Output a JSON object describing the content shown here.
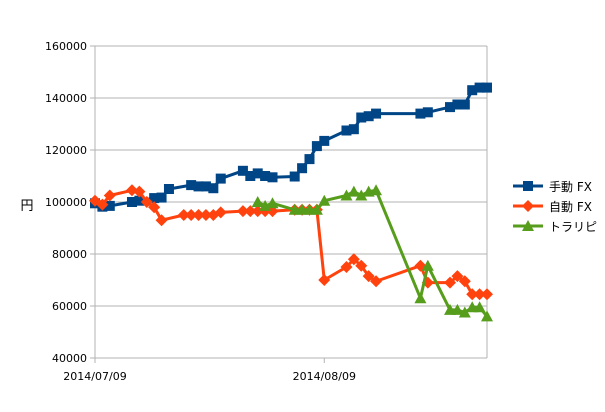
{
  "chart_data": {
    "type": "line",
    "ylabel": "円",
    "ylim": [
      40000,
      160000
    ],
    "y_ticks": [
      "40000",
      "60000",
      "80000",
      "100000",
      "120000",
      "140000",
      "160000"
    ],
    "x_range": [
      "2014/07/09",
      "2014/08/31"
    ],
    "x_ticks": [
      {
        "date": "2014/07/09",
        "label": "2014/07/09"
      },
      {
        "date": "2014/08/09",
        "label": "2014/08/09"
      }
    ],
    "grid": "horizontal",
    "legend_position": "right",
    "series": [
      {
        "name": "手動 FX",
        "color": "#004586",
        "marker": "square",
        "points": [
          [
            "2014/07/09",
            99500
          ],
          [
            "2014/07/10",
            98200
          ],
          [
            "2014/07/11",
            98500
          ],
          [
            "2014/07/14",
            100000
          ],
          [
            "2014/07/15",
            100500
          ],
          [
            "2014/07/17",
            101500
          ],
          [
            "2014/07/18",
            101700
          ],
          [
            "2014/07/19",
            105000
          ],
          [
            "2014/07/22",
            106500
          ],
          [
            "2014/07/23",
            106000
          ],
          [
            "2014/07/24",
            106000
          ],
          [
            "2014/07/25",
            105300
          ],
          [
            "2014/07/26",
            109000
          ],
          [
            "2014/07/29",
            112000
          ],
          [
            "2014/07/30",
            110000
          ],
          [
            "2014/07/31",
            111000
          ],
          [
            "2014/08/01",
            110000
          ],
          [
            "2014/08/02",
            109500
          ],
          [
            "2014/08/05",
            109800
          ],
          [
            "2014/08/06",
            113000
          ],
          [
            "2014/08/07",
            116500
          ],
          [
            "2014/08/08",
            121500
          ],
          [
            "2014/08/09",
            123500
          ],
          [
            "2014/08/12",
            127500
          ],
          [
            "2014/08/13",
            128000
          ],
          [
            "2014/08/14",
            132500
          ],
          [
            "2014/08/15",
            133000
          ],
          [
            "2014/08/16",
            134000
          ],
          [
            "2014/08/22",
            134000
          ],
          [
            "2014/08/23",
            134500
          ],
          [
            "2014/08/26",
            136500
          ],
          [
            "2014/08/27",
            137500
          ],
          [
            "2014/08/28",
            137500
          ],
          [
            "2014/08/29",
            143000
          ],
          [
            "2014/08/30",
            144000
          ],
          [
            "2014/08/31",
            144000
          ]
        ]
      },
      {
        "name": "自動 FX",
        "color": "#ff420e",
        "marker": "diamond",
        "points": [
          [
            "2014/07/09",
            100500
          ],
          [
            "2014/07/10",
            99000
          ],
          [
            "2014/07/11",
            102500
          ],
          [
            "2014/07/14",
            104500
          ],
          [
            "2014/07/15",
            104000
          ],
          [
            "2014/07/16",
            100000
          ],
          [
            "2014/07/17",
            98000
          ],
          [
            "2014/07/18",
            93000
          ],
          [
            "2014/07/21",
            95000
          ],
          [
            "2014/07/22",
            95000
          ],
          [
            "2014/07/23",
            95000
          ],
          [
            "2014/07/24",
            95000
          ],
          [
            "2014/07/25",
            95000
          ],
          [
            "2014/07/26",
            96000
          ],
          [
            "2014/07/29",
            96500
          ],
          [
            "2014/07/30",
            96500
          ],
          [
            "2014/07/31",
            96500
          ],
          [
            "2014/08/01",
            96500
          ],
          [
            "2014/08/02",
            96500
          ],
          [
            "2014/08/05",
            97000
          ],
          [
            "2014/08/06",
            97000
          ],
          [
            "2014/08/07",
            97000
          ],
          [
            "2014/08/08",
            97000
          ],
          [
            "2014/08/09",
            70000
          ],
          [
            "2014/08/12",
            75000
          ],
          [
            "2014/08/13",
            78000
          ],
          [
            "2014/08/14",
            75500
          ],
          [
            "2014/08/15",
            71500
          ],
          [
            "2014/08/16",
            69500
          ],
          [
            "2014/08/22",
            75500
          ],
          [
            "2014/08/23",
            69000
          ],
          [
            "2014/08/26",
            69000
          ],
          [
            "2014/08/27",
            71500
          ],
          [
            "2014/08/28",
            69500
          ],
          [
            "2014/08/29",
            64500
          ],
          [
            "2014/08/30",
            64500
          ],
          [
            "2014/08/31",
            64500
          ]
        ]
      },
      {
        "name": "トラリピ",
        "color": "#579d1c",
        "marker": "triangle",
        "points": [
          [
            "2014/07/31",
            100000
          ],
          [
            "2014/08/01",
            98500
          ],
          [
            "2014/08/02",
            99500
          ],
          [
            "2014/08/05",
            97000
          ],
          [
            "2014/08/06",
            97000
          ],
          [
            "2014/08/07",
            97000
          ],
          [
            "2014/08/08",
            97000
          ],
          [
            "2014/08/09",
            100500
          ],
          [
            "2014/08/12",
            102500
          ],
          [
            "2014/08/13",
            104000
          ],
          [
            "2014/08/14",
            102500
          ],
          [
            "2014/08/15",
            104000
          ],
          [
            "2014/08/16",
            104500
          ],
          [
            "2014/08/22",
            63000
          ],
          [
            "2014/08/23",
            75500
          ],
          [
            "2014/08/26",
            58500
          ],
          [
            "2014/08/27",
            58500
          ],
          [
            "2014/08/28",
            57500
          ],
          [
            "2014/08/29",
            59500
          ],
          [
            "2014/08/30",
            59500
          ],
          [
            "2014/08/31",
            56000
          ]
        ]
      }
    ]
  }
}
